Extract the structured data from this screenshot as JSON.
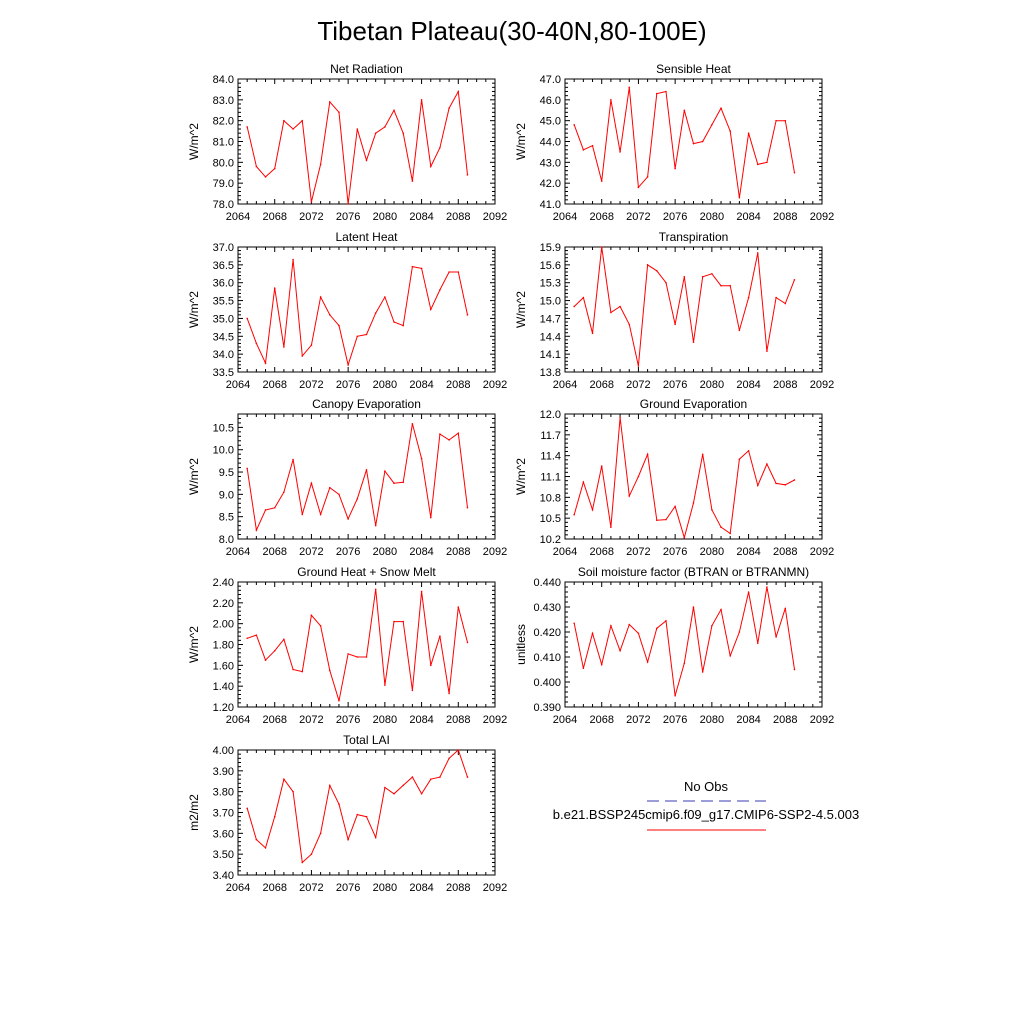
{
  "title": "Tibetan Plateau(30-40N,80-100E)",
  "legend": {
    "entries": [
      {
        "label": "No Obs",
        "color": "#3b3bb5",
        "style": "dashed"
      },
      {
        "label": "b.e21.BSSP245cmip6.f09_g17.CMIP6-SSP2-4.5.003",
        "color": "#ff0000",
        "style": "solid"
      }
    ],
    "placement": "bottom-right"
  },
  "chart_data": [
    {
      "type": "line",
      "title": "Net Radiation",
      "ylabel": "W/m^2",
      "xlim": [
        2064,
        2092
      ],
      "ylim": [
        78.0,
        84.0
      ],
      "xticks": [
        "2064",
        "2068",
        "2072",
        "2076",
        "2080",
        "2084",
        "2088",
        "2092"
      ],
      "yticks": [
        "78.0",
        "79.0",
        "80.0",
        "81.0",
        "82.0",
        "83.0",
        "84.0"
      ],
      "x": [
        2065,
        2066,
        2067,
        2068,
        2069,
        2070,
        2071,
        2072,
        2073,
        2074,
        2075,
        2076,
        2077,
        2078,
        2079,
        2080,
        2081,
        2082,
        2083,
        2084,
        2085,
        2086,
        2087,
        2088,
        2089
      ],
      "values": [
        81.7,
        79.8,
        79.3,
        79.7,
        82.0,
        81.6,
        82.0,
        78.1,
        79.9,
        82.9,
        82.4,
        78.0,
        81.6,
        80.1,
        81.4,
        81.7,
        82.5,
        81.4,
        79.1,
        83.0,
        79.8,
        80.7,
        82.6,
        83.4,
        79.4
      ],
      "series_color": "#ff0000"
    },
    {
      "type": "line",
      "title": "Sensible Heat",
      "ylabel": "W/m^2",
      "xlim": [
        2064,
        2092
      ],
      "ylim": [
        41.0,
        47.0
      ],
      "xticks": [
        "2064",
        "2068",
        "2072",
        "2076",
        "2080",
        "2084",
        "2088",
        "2092"
      ],
      "yticks": [
        "41.0",
        "42.0",
        "43.0",
        "44.0",
        "45.0",
        "46.0",
        "47.0"
      ],
      "x": [
        2065,
        2066,
        2067,
        2068,
        2069,
        2070,
        2071,
        2072,
        2073,
        2074,
        2075,
        2076,
        2077,
        2078,
        2079,
        2080,
        2081,
        2082,
        2083,
        2084,
        2085,
        2086,
        2087,
        2088,
        2089
      ],
      "values": [
        44.8,
        43.6,
        43.8,
        42.1,
        46.0,
        43.5,
        46.6,
        41.8,
        42.3,
        46.3,
        46.4,
        42.7,
        45.5,
        43.9,
        44.0,
        44.8,
        45.6,
        44.5,
        41.3,
        44.4,
        42.9,
        43.0,
        45.0,
        45.0,
        42.5
      ],
      "series_color": "#ff0000"
    },
    {
      "type": "line",
      "title": "Latent Heat",
      "ylabel": "W/m^2",
      "xlim": [
        2064,
        2092
      ],
      "ylim": [
        33.5,
        37.0
      ],
      "xticks": [
        "2064",
        "2068",
        "2072",
        "2076",
        "2080",
        "2084",
        "2088",
        "2092"
      ],
      "yticks": [
        "33.5",
        "34.0",
        "34.5",
        "35.0",
        "35.5",
        "36.0",
        "36.5",
        "37.0"
      ],
      "x": [
        2065,
        2066,
        2067,
        2068,
        2069,
        2070,
        2071,
        2072,
        2073,
        2074,
        2075,
        2076,
        2077,
        2078,
        2079,
        2080,
        2081,
        2082,
        2083,
        2084,
        2085,
        2086,
        2087,
        2088,
        2089
      ],
      "values": [
        35.0,
        34.3,
        33.75,
        35.85,
        34.2,
        36.65,
        33.95,
        34.25,
        35.6,
        35.1,
        34.8,
        33.7,
        34.5,
        34.55,
        35.15,
        35.6,
        34.9,
        34.8,
        36.45,
        36.4,
        35.25,
        35.8,
        36.3,
        36.3,
        35.1
      ],
      "series_color": "#ff0000"
    },
    {
      "type": "line",
      "title": "Transpiration",
      "ylabel": "W/m^2",
      "xlim": [
        2064,
        2092
      ],
      "ylim": [
        13.8,
        15.9
      ],
      "xticks": [
        "2064",
        "2068",
        "2072",
        "2076",
        "2080",
        "2084",
        "2088",
        "2092"
      ],
      "yticks": [
        "13.8",
        "14.1",
        "14.4",
        "14.7",
        "15.0",
        "15.3",
        "15.6",
        "15.9"
      ],
      "x": [
        2065,
        2066,
        2067,
        2068,
        2069,
        2070,
        2071,
        2072,
        2073,
        2074,
        2075,
        2076,
        2077,
        2078,
        2079,
        2080,
        2081,
        2082,
        2083,
        2084,
        2085,
        2086,
        2087,
        2088,
        2089
      ],
      "values": [
        14.9,
        15.05,
        14.45,
        15.9,
        14.8,
        14.9,
        14.6,
        13.9,
        15.6,
        15.5,
        15.3,
        14.6,
        15.4,
        14.3,
        15.4,
        15.45,
        15.25,
        15.25,
        14.5,
        15.05,
        15.8,
        14.15,
        15.05,
        14.95,
        15.35
      ],
      "series_color": "#ff0000"
    },
    {
      "type": "line",
      "title": "Canopy Evaporation",
      "ylabel": "W/m^2",
      "xlim": [
        2064,
        2092
      ],
      "ylim": [
        8.0,
        10.8
      ],
      "xticks": [
        "2064",
        "2068",
        "2072",
        "2076",
        "2080",
        "2084",
        "2088",
        "2092"
      ],
      "yticks": [
        "8.0",
        "8.5",
        "9.0",
        "9.5",
        "10.0",
        "10.5"
      ],
      "x": [
        2065,
        2066,
        2067,
        2068,
        2069,
        2070,
        2071,
        2072,
        2073,
        2074,
        2075,
        2076,
        2077,
        2078,
        2079,
        2080,
        2081,
        2082,
        2083,
        2084,
        2085,
        2086,
        2087,
        2088,
        2089
      ],
      "values": [
        9.58,
        8.2,
        8.65,
        8.7,
        9.05,
        9.78,
        8.55,
        9.25,
        8.55,
        9.15,
        9.0,
        8.45,
        8.9,
        9.55,
        8.3,
        9.52,
        9.25,
        9.27,
        10.58,
        9.8,
        8.48,
        10.35,
        10.22,
        10.37,
        8.7
      ],
      "series_color": "#ff0000"
    },
    {
      "type": "line",
      "title": "Ground Evaporation",
      "ylabel": "W/m^2",
      "xlim": [
        2064,
        2092
      ],
      "ylim": [
        10.2,
        12.0
      ],
      "xticks": [
        "2064",
        "2068",
        "2072",
        "2076",
        "2080",
        "2084",
        "2088",
        "2092"
      ],
      "yticks": [
        "10.2",
        "10.5",
        "10.8",
        "11.1",
        "11.4",
        "11.7",
        "12.0"
      ],
      "x": [
        2065,
        2066,
        2067,
        2068,
        2069,
        2070,
        2071,
        2072,
        2073,
        2074,
        2075,
        2076,
        2077,
        2078,
        2079,
        2080,
        2081,
        2082,
        2083,
        2084,
        2085,
        2086,
        2087,
        2088,
        2089
      ],
      "values": [
        10.55,
        11.02,
        10.62,
        11.25,
        10.37,
        11.95,
        10.82,
        11.1,
        11.42,
        10.47,
        10.48,
        10.67,
        10.22,
        10.72,
        11.42,
        10.62,
        10.37,
        10.28,
        11.35,
        11.47,
        10.97,
        11.28,
        11.0,
        10.98,
        11.05
      ],
      "series_color": "#ff0000"
    },
    {
      "type": "line",
      "title": "Ground Heat + Snow Melt",
      "ylabel": "W/m^2",
      "xlim": [
        2064,
        2092
      ],
      "ylim": [
        1.2,
        2.4
      ],
      "xticks": [
        "2064",
        "2068",
        "2072",
        "2076",
        "2080",
        "2084",
        "2088",
        "2092"
      ],
      "yticks": [
        "1.20",
        "1.40",
        "1.60",
        "1.80",
        "2.00",
        "2.20",
        "2.40"
      ],
      "x": [
        2065,
        2066,
        2067,
        2068,
        2069,
        2070,
        2071,
        2072,
        2073,
        2074,
        2075,
        2076,
        2077,
        2078,
        2079,
        2080,
        2081,
        2082,
        2083,
        2084,
        2085,
        2086,
        2087,
        2088,
        2089
      ],
      "values": [
        1.86,
        1.89,
        1.65,
        1.74,
        1.85,
        1.56,
        1.54,
        2.08,
        1.98,
        1.55,
        1.26,
        1.71,
        1.68,
        1.68,
        2.33,
        1.41,
        2.02,
        2.02,
        1.36,
        2.31,
        1.6,
        1.88,
        1.33,
        2.16,
        1.82
      ],
      "series_color": "#ff0000"
    },
    {
      "type": "line",
      "title": "Soil moisture factor (BTRAN or BTRANMN)",
      "ylabel": "unitless",
      "xlim": [
        2064,
        2092
      ],
      "ylim": [
        0.39,
        0.44
      ],
      "xticks": [
        "2064",
        "2068",
        "2072",
        "2076",
        "2080",
        "2084",
        "2088",
        "2092"
      ],
      "yticks": [
        "0.390",
        "0.400",
        "0.410",
        "0.420",
        "0.430",
        "0.440"
      ],
      "x": [
        2065,
        2066,
        2067,
        2068,
        2069,
        2070,
        2071,
        2072,
        2073,
        2074,
        2075,
        2076,
        2077,
        2078,
        2079,
        2080,
        2081,
        2082,
        2083,
        2084,
        2085,
        2086,
        2087,
        2088,
        2089
      ],
      "values": [
        0.4235,
        0.4055,
        0.4195,
        0.407,
        0.4225,
        0.4125,
        0.423,
        0.4195,
        0.408,
        0.4215,
        0.4245,
        0.3945,
        0.4075,
        0.43,
        0.404,
        0.4225,
        0.429,
        0.4105,
        0.42,
        0.436,
        0.4155,
        0.438,
        0.418,
        0.4295,
        0.405
      ],
      "series_color": "#ff0000"
    },
    {
      "type": "line",
      "title": "Total LAI",
      "ylabel": "m2/m2",
      "xlim": [
        2064,
        2092
      ],
      "ylim": [
        3.4,
        4.0
      ],
      "xticks": [
        "2064",
        "2068",
        "2072",
        "2076",
        "2080",
        "2084",
        "2088",
        "2092"
      ],
      "yticks": [
        "3.40",
        "3.50",
        "3.60",
        "3.70",
        "3.80",
        "3.90",
        "4.00"
      ],
      "x": [
        2065,
        2066,
        2067,
        2068,
        2069,
        2070,
        2071,
        2072,
        2073,
        2074,
        2075,
        2076,
        2077,
        2078,
        2079,
        2080,
        2081,
        2082,
        2083,
        2084,
        2085,
        2086,
        2087,
        2088,
        2089
      ],
      "values": [
        3.72,
        3.57,
        3.53,
        3.68,
        3.86,
        3.8,
        3.46,
        3.5,
        3.6,
        3.83,
        3.74,
        3.57,
        3.69,
        3.68,
        3.58,
        3.82,
        3.79,
        3.83,
        3.87,
        3.79,
        3.86,
        3.87,
        3.96,
        4.0,
        3.87
      ],
      "series_color": "#ff0000"
    }
  ]
}
